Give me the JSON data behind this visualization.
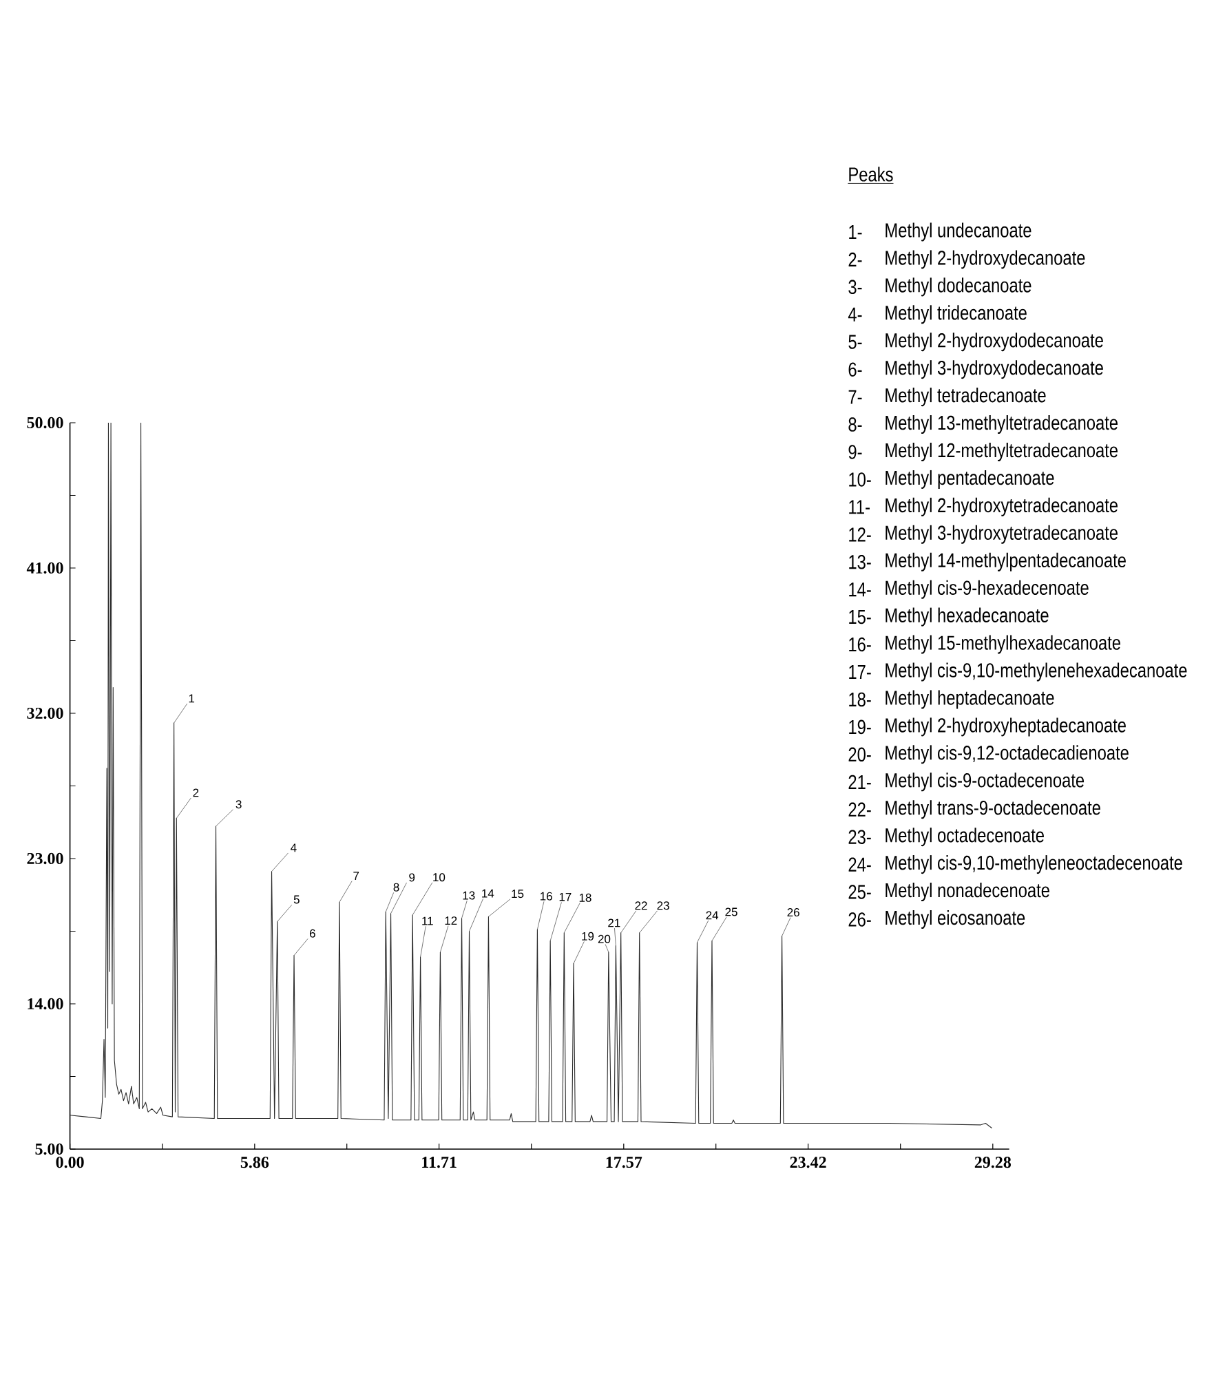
{
  "chart_data": {
    "type": "line",
    "x": [
      0,
      0.5,
      0.98,
      1.03,
      1.08,
      1.12,
      1.17,
      1.2,
      1.22,
      1.26,
      1.3,
      1.34,
      1.37,
      1.41,
      1.48,
      1.55,
      1.62,
      1.7,
      1.78,
      1.86,
      1.95,
      2.02,
      2.12,
      2.2,
      2.25,
      2.3,
      2.4,
      2.48,
      2.6,
      2.75,
      2.88,
      2.95,
      3.25,
      3.3,
      3.34,
      3.38,
      3.43,
      4.58,
      4.63,
      4.68,
      6.35,
      6.4,
      6.49,
      6.58,
      6.63,
      7.06,
      7.11,
      7.16,
      8.5,
      8.55,
      8.6,
      9.97,
      10.02,
      10.1,
      10.18,
      10.23,
      10.82,
      10.87,
      10.93,
      11.07,
      11.12,
      11.17,
      11.7,
      11.75,
      11.8,
      12.38,
      12.43,
      12.48,
      12.62,
      12.67,
      12.72,
      12.8,
      12.85,
      13.23,
      13.28,
      13.33,
      13.95,
      14.0,
      14.05,
      14.78,
      14.83,
      14.88,
      15.19,
      15.24,
      15.29,
      15.63,
      15.68,
      15.73,
      15.93,
      15.98,
      16.03,
      16.5,
      16.55,
      16.6,
      17.04,
      17.09,
      17.17,
      17.27,
      17.32,
      17.4,
      17.48,
      17.53,
      18.02,
      18.07,
      18.12,
      19.85,
      19.9,
      19.95,
      20.32,
      20.37,
      20.42,
      21.0,
      21.05,
      21.1,
      22.54,
      22.59,
      22.64,
      26.0,
      28.9,
      29.05,
      29.25
    ],
    "series": [
      {
        "color": "#2b2b2b",
        "values": [
          7.1,
          7.0,
          6.9,
          8.0,
          11.8,
          8.2,
          28.6,
          12.5,
          50,
          16.0,
          50,
          14.0,
          33.6,
          10.5,
          9.0,
          8.4,
          8.7,
          8.0,
          8.5,
          7.8,
          8.9,
          7.8,
          8.2,
          7.5,
          50,
          7.5,
          7.9,
          7.3,
          7.5,
          7.2,
          7.6,
          7.1,
          7.0,
          31.4,
          7.3,
          25.5,
          7.0,
          6.9,
          25.0,
          6.9,
          6.9,
          22.2,
          6.9,
          19.1,
          6.9,
          6.9,
          17.0,
          6.9,
          6.9,
          20.3,
          6.9,
          6.8,
          19.7,
          6.9,
          19.6,
          6.8,
          6.8,
          19.5,
          6.8,
          6.8,
          16.9,
          6.8,
          6.8,
          17.2,
          6.8,
          6.8,
          19.3,
          6.8,
          6.8,
          18.5,
          6.8,
          7.3,
          6.8,
          6.8,
          19.4,
          6.8,
          6.8,
          7.2,
          6.7,
          6.7,
          18.6,
          6.7,
          6.7,
          17.9,
          6.7,
          6.7,
          18.4,
          6.7,
          6.7,
          16.5,
          6.7,
          6.7,
          7.1,
          6.7,
          6.7,
          17.2,
          6.7,
          6.7,
          17.6,
          6.7,
          18.4,
          6.7,
          6.7,
          18.4,
          6.7,
          6.6,
          17.8,
          6.6,
          6.6,
          17.9,
          6.6,
          6.6,
          6.8,
          6.6,
          6.6,
          18.2,
          6.6,
          6.6,
          6.5,
          6.6,
          6.3
        ]
      }
    ],
    "xlim": [
      0,
      29.8
    ],
    "ylim": [
      5,
      50
    ],
    "xticks": [
      {
        "value": 0,
        "label": "0.00"
      },
      {
        "value": 2.93,
        "label": null
      },
      {
        "value": 5.86,
        "label": "5.86"
      },
      {
        "value": 8.785,
        "label": null
      },
      {
        "value": 11.71,
        "label": "11.71"
      },
      {
        "value": 14.64,
        "label": null
      },
      {
        "value": 17.57,
        "label": "17.57"
      },
      {
        "value": 20.495,
        "label": null
      },
      {
        "value": 23.42,
        "label": "23.42"
      },
      {
        "value": 26.35,
        "label": null
      },
      {
        "value": 29.28,
        "label": "29.28"
      }
    ],
    "yticks": [
      {
        "value": 5,
        "label": "5.00"
      },
      {
        "value": 9.5,
        "label": null
      },
      {
        "value": 14,
        "label": "14.00"
      },
      {
        "value": 18.5,
        "label": null
      },
      {
        "value": 23,
        "label": "23.00"
      },
      {
        "value": 27.5,
        "label": null
      },
      {
        "value": 32,
        "label": "32.00"
      },
      {
        "value": 36.5,
        "label": null
      },
      {
        "value": 41,
        "label": "41.00"
      },
      {
        "value": 45.5,
        "label": null
      },
      {
        "value": 50,
        "label": "50.00"
      }
    ],
    "annotations": [
      {
        "text": "1",
        "x": 3.3,
        "y": 31.4
      },
      {
        "text": "2",
        "x": 3.38,
        "y": 25.5
      },
      {
        "text": "3",
        "x": 4.63,
        "y": 25.0
      },
      {
        "text": "4",
        "x": 6.4,
        "y": 22.2
      },
      {
        "text": "5",
        "x": 6.58,
        "y": 19.1
      },
      {
        "text": "6",
        "x": 7.11,
        "y": 17.0
      },
      {
        "text": "7",
        "x": 8.55,
        "y": 20.3
      },
      {
        "text": "8",
        "x": 10.02,
        "y": 19.7
      },
      {
        "text": "9",
        "x": 10.18,
        "y": 19.6
      },
      {
        "text": "10",
        "x": 10.87,
        "y": 19.5
      },
      {
        "text": "11",
        "x": 11.12,
        "y": 16.9
      },
      {
        "text": "12",
        "x": 11.75,
        "y": 17.2
      },
      {
        "text": "13",
        "x": 12.43,
        "y": 19.3
      },
      {
        "text": "14",
        "x": 12.67,
        "y": 18.5
      },
      {
        "text": "15",
        "x": 13.28,
        "y": 19.4
      },
      {
        "text": "16",
        "x": 14.83,
        "y": 18.6
      },
      {
        "text": "17",
        "x": 15.24,
        "y": 17.9
      },
      {
        "text": "18",
        "x": 15.68,
        "y": 18.4
      },
      {
        "text": "19",
        "x": 15.98,
        "y": 16.5
      },
      {
        "text": "20",
        "x": 17.09,
        "y": 17.2
      },
      {
        "text": "21",
        "x": 17.32,
        "y": 17.6
      },
      {
        "text": "22",
        "x": 17.48,
        "y": 18.4
      },
      {
        "text": "23",
        "x": 18.07,
        "y": 18.4
      },
      {
        "text": "24",
        "x": 19.9,
        "y": 17.8
      },
      {
        "text": "25",
        "x": 20.37,
        "y": 17.9
      },
      {
        "text": "26",
        "x": 22.59,
        "y": 18.2
      },
      "Peaks",
      "1-",
      "Methyl undecanoate",
      "2-",
      "Methyl 2-hydroxydecanoate",
      "3-",
      "Methyl dodecanoate",
      "4-",
      "Methyl tridecanoate",
      "5-",
      "Methyl 2-hydroxydodecanoate",
      "6-",
      "Methyl 3-hydroxydodecanoate",
      "7-",
      "Methyl tetradecanoate",
      "8-",
      "Methyl 13-methyltetradecanoate",
      "9-",
      "Methyl 12-methyltetradecanoate",
      "10-",
      "Methyl pentadecanoate",
      "11-",
      "Methyl 2-hydroxytetradecanoate",
      "12-",
      "Methyl 3-hydroxytetradecanoate",
      "13-",
      "Methyl 14-methylpentadecanoate",
      "14-",
      "Methyl cis-9-hexadecenoate",
      "15-",
      "Methyl hexadecanoate",
      "16-",
      "Methyl 15-methylhexadecanoate",
      "17-",
      "Methyl cis-9,10-methylenehexadecanoate",
      "18-",
      "Methyl heptadecanoate",
      "19-",
      "Methyl 2-hydroxyheptadecanoate",
      "20-",
      "Methyl cis-9,12-octadecadienoate",
      "21-",
      "Methyl cis-9-octadecenoate",
      "22-",
      "Methyl trans-9-octadecenoate",
      "23-",
      "Methyl octadecenoate",
      "24-",
      "Methyl cis-9,10-methyleneoctadecenoate",
      "25-",
      "Methyl nonadecenoate",
      "26-",
      "Methyl eicosanoate"
    ]
  }
}
